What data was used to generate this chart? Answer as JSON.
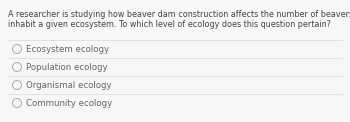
{
  "question_line1": "A researcher is studying how beaver dam construction affects the number of beavers that can",
  "question_line2": "inhabit a given ecosystem. To which level of ecology does this question pertain?",
  "choices": [
    "Ecosystem ecology",
    "Population ecology",
    "Organismal ecology",
    "Community ecology"
  ],
  "bg_color": "#f7f7f5",
  "text_color": "#666666",
  "question_color": "#444444",
  "line_color": "#d8d8d8",
  "circle_edge_color": "#aaaaaa",
  "question_fontsize": 5.8,
  "choice_fontsize": 6.2
}
